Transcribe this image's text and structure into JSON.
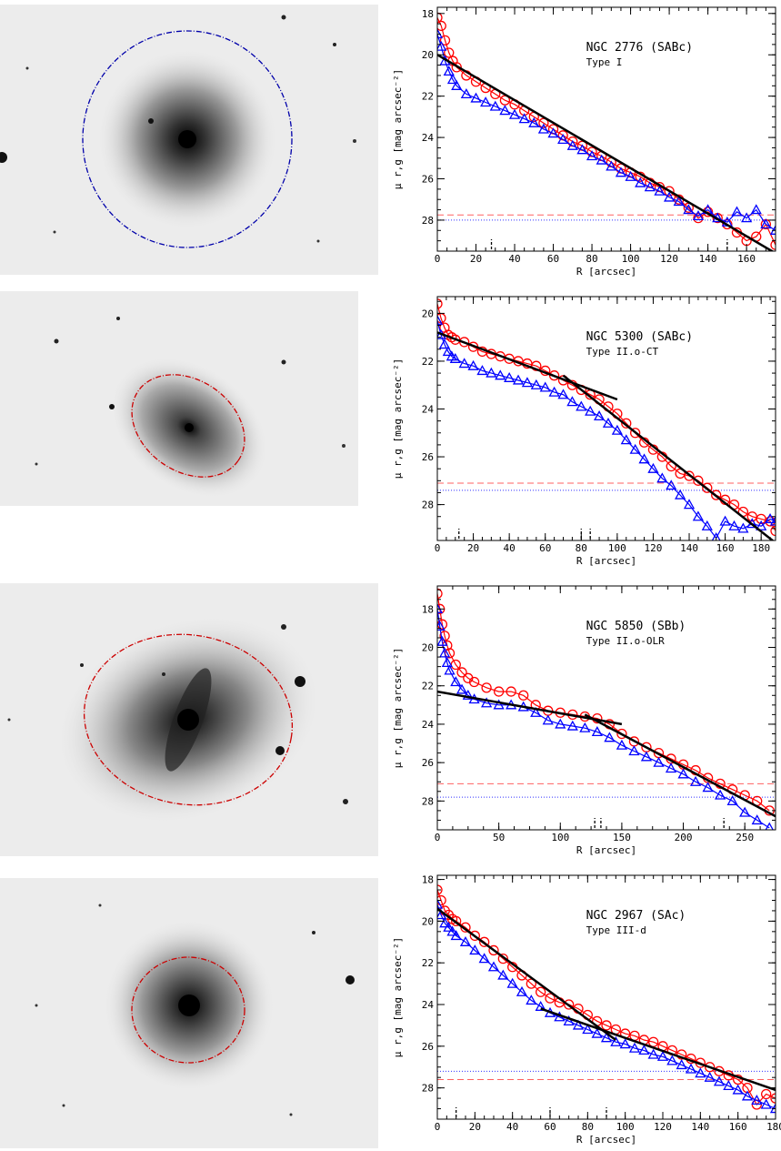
{
  "colors": {
    "r_band": "#ff0000",
    "g_band": "#0000ff",
    "fit": "#000000",
    "limit_r": "#ff6060",
    "limit_g": "#3030ff"
  },
  "panels": [
    {
      "image": {
        "ellipse_color": "#0000aa",
        "ellipse_style": "dash-dot"
      },
      "chart_data": {
        "type": "line",
        "title": "NGC 2776 (SABc)",
        "subtitle": "Type I",
        "xlabel": "R [arcsec]",
        "ylabel": "μ r,g [mag arcsec⁻²]",
        "xlim": [
          0,
          175
        ],
        "ylim": [
          29.5,
          17.7
        ],
        "xticks": [
          0,
          20,
          40,
          60,
          80,
          100,
          120,
          140,
          160
        ],
        "yticks": [
          18,
          20,
          22,
          24,
          26,
          28
        ],
        "limits": {
          "r": 27.75,
          "g": 28.0
        },
        "break_marks": [
          28,
          150
        ],
        "series": [
          {
            "band": "r",
            "marker": "circle",
            "x": [
              0,
              2,
              4,
              6,
              8,
              10,
              15,
              20,
              25,
              30,
              35,
              40,
              45,
              50,
              55,
              60,
              65,
              70,
              75,
              80,
              85,
              90,
              95,
              100,
              105,
              110,
              115,
              120,
              125,
              130,
              135,
              140,
              145,
              150,
              155,
              160,
              165,
              170,
              175
            ],
            "y": [
              18.2,
              18.6,
              19.3,
              19.9,
              20.3,
              20.6,
              21.0,
              21.3,
              21.6,
              21.9,
              22.2,
              22.4,
              22.7,
              23.0,
              23.3,
              23.6,
              23.9,
              24.2,
              24.4,
              24.7,
              24.9,
              25.2,
              25.5,
              25.7,
              25.9,
              26.2,
              26.4,
              26.6,
              27.0,
              27.4,
              27.9,
              27.6,
              27.9,
              28.2,
              28.6,
              29.0,
              28.8,
              28.2,
              29.2
            ]
          },
          {
            "band": "g",
            "marker": "triangle",
            "x": [
              0,
              2,
              4,
              6,
              8,
              10,
              15,
              20,
              25,
              30,
              35,
              40,
              45,
              50,
              55,
              60,
              65,
              70,
              75,
              80,
              85,
              90,
              95,
              100,
              105,
              110,
              115,
              120,
              125,
              130,
              135,
              140,
              145,
              150,
              155,
              160,
              165,
              170,
              175
            ],
            "y": [
              19.0,
              19.6,
              20.3,
              20.8,
              21.2,
              21.5,
              21.9,
              22.1,
              22.3,
              22.5,
              22.7,
              22.9,
              23.1,
              23.3,
              23.6,
              23.8,
              24.1,
              24.4,
              24.6,
              24.9,
              25.1,
              25.4,
              25.7,
              25.9,
              26.2,
              26.4,
              26.6,
              26.9,
              27.1,
              27.5,
              27.8,
              27.5,
              27.9,
              28.1,
              27.6,
              27.9,
              27.5,
              28.2,
              28.5
            ]
          },
          {
            "band": "fit",
            "marker": "none",
            "x": [
              0,
              175
            ],
            "y": [
              20.0,
              29.6
            ]
          }
        ]
      }
    },
    {
      "image": {
        "ellipse_color": "#cc0000",
        "ellipse_style": "dash-dot"
      },
      "chart_data": {
        "type": "line",
        "title": "NGC 5300 (SABc)",
        "subtitle": "Type II.o-CT",
        "xlabel": "R [arcsec]",
        "ylabel": "μ r,g [mag arcsec⁻²]",
        "xlim": [
          0,
          188
        ],
        "ylim": [
          29.5,
          19.3
        ],
        "xticks": [
          0,
          20,
          40,
          60,
          80,
          100,
          120,
          140,
          160,
          180
        ],
        "yticks": [
          20,
          22,
          24,
          26,
          28
        ],
        "limits": {
          "r": 27.1,
          "g": 27.4
        },
        "break_marks": [
          12,
          80,
          85
        ],
        "series": [
          {
            "band": "r",
            "marker": "circle",
            "x": [
              0,
              2,
              4,
              6,
              8,
              10,
              15,
              20,
              25,
              30,
              35,
              40,
              45,
              50,
              55,
              60,
              65,
              70,
              75,
              80,
              85,
              90,
              95,
              100,
              105,
              110,
              115,
              120,
              125,
              130,
              135,
              140,
              145,
              150,
              155,
              160,
              165,
              170,
              175,
              180,
              185,
              188
            ],
            "y": [
              19.6,
              20.2,
              20.6,
              20.9,
              21.0,
              21.1,
              21.2,
              21.4,
              21.6,
              21.7,
              21.8,
              21.9,
              22.0,
              22.1,
              22.2,
              22.4,
              22.6,
              22.8,
              23.0,
              23.2,
              23.4,
              23.6,
              23.9,
              24.2,
              24.6,
              25.0,
              25.4,
              25.7,
              26.0,
              26.4,
              26.7,
              26.8,
              27.0,
              27.3,
              27.6,
              27.8,
              28.0,
              28.3,
              28.5,
              28.6,
              28.7,
              29.1
            ]
          },
          {
            "band": "g",
            "marker": "triangle",
            "x": [
              0,
              2,
              4,
              6,
              8,
              10,
              15,
              20,
              25,
              30,
              35,
              40,
              45,
              50,
              55,
              60,
              65,
              70,
              75,
              80,
              85,
              90,
              95,
              100,
              105,
              110,
              115,
              120,
              125,
              130,
              135,
              140,
              145,
              150,
              155,
              160,
              165,
              170,
              175,
              180,
              185,
              188
            ],
            "y": [
              20.3,
              20.9,
              21.3,
              21.6,
              21.8,
              21.9,
              22.1,
              22.2,
              22.4,
              22.5,
              22.6,
              22.7,
              22.8,
              22.9,
              23.0,
              23.1,
              23.3,
              23.4,
              23.7,
              23.9,
              24.1,
              24.3,
              24.6,
              24.9,
              25.3,
              25.7,
              26.1,
              26.5,
              26.9,
              27.2,
              27.6,
              28.0,
              28.5,
              28.9,
              29.4,
              28.7,
              28.9,
              29.0,
              28.8,
              28.9,
              28.6,
              28.7
            ]
          },
          {
            "band": "fit",
            "marker": "none",
            "x": [
              0,
              100
            ],
            "y": [
              20.8,
              23.6
            ]
          },
          {
            "band": "fit",
            "marker": "none",
            "x": [
              70,
              188
            ],
            "y": [
              22.6,
              29.6
            ]
          }
        ]
      }
    },
    {
      "image": {
        "ellipse_color": "#cc0000",
        "ellipse_style": "dash-dot"
      },
      "chart_data": {
        "type": "line",
        "title": "NGC 5850 (SBb)",
        "subtitle": "Type II.o-OLR",
        "xlabel": "R [arcsec]",
        "ylabel": "μ r,g [mag arcsec⁻²]",
        "xlim": [
          0,
          275
        ],
        "ylim": [
          29.5,
          16.8
        ],
        "xticks": [
          0,
          50,
          100,
          150,
          200,
          250
        ],
        "yticks": [
          18,
          20,
          22,
          24,
          26,
          28
        ],
        "limits": {
          "r": 27.1,
          "g": 27.8
        },
        "break_marks": [
          128,
          133,
          233
        ],
        "series": [
          {
            "band": "r",
            "marker": "circle",
            "x": [
              0,
              2,
              4,
              6,
              8,
              10,
              15,
              20,
              25,
              30,
              40,
              50,
              60,
              70,
              80,
              90,
              100,
              110,
              120,
              130,
              140,
              150,
              160,
              170,
              180,
              190,
              200,
              210,
              220,
              230,
              240,
              250,
              260,
              270
            ],
            "y": [
              17.2,
              18.0,
              18.8,
              19.4,
              19.9,
              20.3,
              20.9,
              21.3,
              21.6,
              21.8,
              22.1,
              22.3,
              22.3,
              22.5,
              23.0,
              23.3,
              23.4,
              23.5,
              23.6,
              23.7,
              24.0,
              24.5,
              24.9,
              25.2,
              25.5,
              25.8,
              26.1,
              26.4,
              26.8,
              27.1,
              27.4,
              27.7,
              28.0,
              28.5
            ]
          },
          {
            "band": "g",
            "marker": "triangle",
            "x": [
              0,
              2,
              4,
              6,
              8,
              10,
              15,
              20,
              25,
              30,
              40,
              50,
              60,
              70,
              80,
              90,
              100,
              110,
              120,
              130,
              140,
              150,
              160,
              170,
              180,
              190,
              200,
              210,
              220,
              230,
              240,
              250,
              260,
              270
            ],
            "y": [
              18.0,
              18.9,
              19.7,
              20.3,
              20.8,
              21.2,
              21.8,
              22.2,
              22.5,
              22.7,
              22.9,
              23.0,
              23.0,
              23.1,
              23.4,
              23.8,
              24.0,
              24.1,
              24.2,
              24.4,
              24.7,
              25.1,
              25.4,
              25.7,
              26.0,
              26.3,
              26.6,
              27.0,
              27.3,
              27.7,
              28.0,
              28.6,
              29.0,
              29.4
            ]
          },
          {
            "band": "fit",
            "marker": "none",
            "x": [
              0,
              150
            ],
            "y": [
              22.3,
              24.0
            ]
          },
          {
            "band": "fit",
            "marker": "none",
            "x": [
              120,
              275
            ],
            "y": [
              23.5,
              28.8
            ]
          }
        ]
      }
    },
    {
      "image": {
        "ellipse_color": "#cc0000",
        "ellipse_style": "dash-dot"
      },
      "chart_data": {
        "type": "line",
        "title": "NGC 2967 (SAc)",
        "subtitle": "Type III-d",
        "xlabel": "R [arcsec]",
        "ylabel": "μ r,g [mag arcsec⁻²]",
        "xlim": [
          0,
          180
        ],
        "ylim": [
          29.5,
          17.8
        ],
        "xticks": [
          0,
          20,
          40,
          60,
          80,
          100,
          120,
          140,
          160,
          180
        ],
        "yticks": [
          18,
          20,
          22,
          24,
          26,
          28
        ],
        "limits": {
          "r": 27.6,
          "g": 27.2
        },
        "break_marks": [
          10,
          60,
          90
        ],
        "series": [
          {
            "band": "r",
            "marker": "circle",
            "x": [
              0,
              2,
              4,
              6,
              8,
              10,
              15,
              20,
              25,
              30,
              35,
              40,
              45,
              50,
              55,
              60,
              65,
              70,
              75,
              80,
              85,
              90,
              95,
              100,
              105,
              110,
              115,
              120,
              125,
              130,
              135,
              140,
              145,
              150,
              155,
              160,
              165,
              170,
              175,
              180
            ],
            "y": [
              18.5,
              19.0,
              19.5,
              19.7,
              19.9,
              20.0,
              20.3,
              20.7,
              21.0,
              21.4,
              21.8,
              22.2,
              22.6,
              23.0,
              23.4,
              23.7,
              23.9,
              24.0,
              24.2,
              24.5,
              24.8,
              25.0,
              25.2,
              25.4,
              25.5,
              25.7,
              25.8,
              26.0,
              26.2,
              26.4,
              26.6,
              26.8,
              27.0,
              27.2,
              27.4,
              27.6,
              28.0,
              28.8,
              28.3,
              28.5
            ]
          },
          {
            "band": "g",
            "marker": "triangle",
            "x": [
              0,
              2,
              4,
              6,
              8,
              10,
              15,
              20,
              25,
              30,
              35,
              40,
              45,
              50,
              55,
              60,
              65,
              70,
              75,
              80,
              85,
              90,
              95,
              100,
              105,
              110,
              115,
              120,
              125,
              130,
              135,
              140,
              145,
              150,
              155,
              160,
              165,
              170,
              175,
              180
            ],
            "y": [
              19.2,
              19.7,
              20.1,
              20.3,
              20.5,
              20.7,
              21.0,
              21.4,
              21.8,
              22.2,
              22.6,
              23.0,
              23.4,
              23.8,
              24.1,
              24.4,
              24.6,
              24.8,
              25.0,
              25.2,
              25.4,
              25.6,
              25.8,
              25.9,
              26.1,
              26.2,
              26.4,
              26.5,
              26.7,
              26.9,
              27.1,
              27.3,
              27.5,
              27.7,
              27.9,
              28.1,
              28.4,
              28.6,
              28.8,
              29.0
            ]
          },
          {
            "band": "fit",
            "marker": "none",
            "x": [
              0,
              95
            ],
            "y": [
              19.4,
              25.7
            ]
          },
          {
            "band": "fit",
            "marker": "none",
            "x": [
              55,
              180
            ],
            "y": [
              24.2,
              28.1
            ]
          }
        ]
      }
    }
  ]
}
